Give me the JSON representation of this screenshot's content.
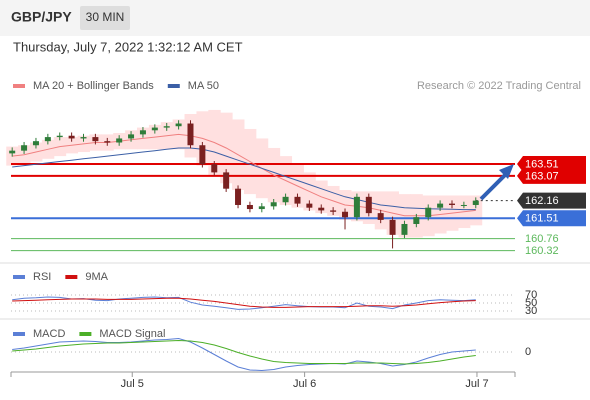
{
  "header": {
    "symbol": "GBP/JPY",
    "interval": "30 MIN",
    "timestamp": "Thursday, July 7, 2022 1:32:12 AM CET"
  },
  "chart_data": [
    {
      "type": "candlestick",
      "open": [
        163.9,
        164.0,
        164.2,
        164.35,
        164.5,
        164.55,
        164.45,
        164.5,
        164.35,
        164.3,
        164.45,
        164.6,
        164.75,
        164.85,
        164.9,
        165.0,
        164.2,
        163.5,
        163.2,
        162.6,
        162.0,
        161.85,
        161.95,
        162.1,
        162.3,
        162.05,
        161.9,
        161.8,
        161.75,
        161.55,
        162.3,
        161.7,
        161.45,
        160.9,
        161.3,
        161.55,
        161.9,
        162.05,
        162.0,
        162.0
      ],
      "high": [
        164.12,
        164.32,
        164.47,
        164.62,
        164.67,
        164.67,
        164.62,
        164.62,
        164.47,
        164.57,
        164.72,
        164.87,
        164.97,
        165.02,
        165.12,
        165.12,
        164.32,
        163.62,
        163.32,
        162.72,
        162.12,
        162.07,
        162.22,
        162.42,
        162.42,
        162.17,
        162.02,
        161.92,
        161.87,
        162.42,
        162.42,
        161.82,
        161.57,
        161.42,
        161.67,
        162.02,
        162.17,
        162.17,
        162.12,
        162.28
      ],
      "low": [
        163.78,
        163.88,
        164.08,
        164.23,
        164.38,
        164.33,
        164.33,
        164.23,
        164.18,
        164.18,
        164.33,
        164.48,
        164.63,
        164.73,
        164.78,
        164.08,
        163.38,
        163.08,
        162.48,
        161.88,
        161.73,
        161.73,
        161.83,
        161.98,
        161.93,
        161.78,
        161.68,
        161.63,
        161.1,
        161.43,
        161.58,
        161.33,
        160.4,
        160.78,
        161.18,
        161.43,
        161.78,
        161.88,
        161.88,
        161.88
      ],
      "close": [
        164.0,
        164.2,
        164.35,
        164.5,
        164.55,
        164.45,
        164.5,
        164.35,
        164.3,
        164.45,
        164.6,
        164.75,
        164.85,
        164.9,
        165.0,
        164.2,
        163.5,
        163.2,
        162.6,
        162.0,
        161.85,
        161.95,
        162.1,
        162.3,
        162.05,
        161.9,
        161.8,
        161.75,
        161.55,
        162.3,
        161.7,
        161.45,
        160.9,
        161.3,
        161.55,
        161.9,
        162.05,
        162.0,
        162.0,
        162.16
      ],
      "up_color": "#2f7d3a",
      "down_color": "#7a2020",
      "xlim": [
        -0.1,
        42.3
      ],
      "xticks": [
        {
          "value": 10.1,
          "label": "Jul 5"
        },
        {
          "value": 24.6,
          "label": "Jul 6"
        },
        {
          "value": 39.1,
          "label": "Jul 7"
        }
      ],
      "ylim": [
        159.9,
        166.05
      ],
      "overlays": [
        {
          "name": "MA 20 + Bollinger Bands",
          "color": "#f08080",
          "band_color": "#ffe0e0",
          "values": [
            163.8,
            163.85,
            163.95,
            164.05,
            164.15,
            164.2,
            164.25,
            164.3,
            164.3,
            164.35,
            164.4,
            164.45,
            164.5,
            164.55,
            164.6,
            164.55,
            164.45,
            164.3,
            164.1,
            163.85,
            163.6,
            163.35,
            163.1,
            162.9,
            162.7,
            162.5,
            162.3,
            162.15,
            162.0,
            161.95,
            161.9,
            161.8,
            161.7,
            161.6,
            161.6,
            161.6,
            161.65,
            161.7,
            161.75,
            161.8
          ],
          "upper": [
            164.15,
            164.2,
            164.3,
            164.4,
            164.5,
            164.5,
            164.55,
            164.6,
            164.6,
            164.65,
            164.75,
            164.85,
            164.95,
            165.05,
            165.15,
            165.35,
            165.45,
            165.5,
            165.4,
            165.15,
            164.8,
            164.45,
            164.1,
            163.8,
            163.5,
            163.2,
            162.9,
            162.7,
            162.55,
            162.5,
            162.5,
            162.5,
            162.5,
            162.4,
            162.4,
            162.35,
            162.35,
            162.35,
            162.35,
            162.35
          ],
          "lower": [
            163.45,
            163.5,
            163.6,
            163.7,
            163.8,
            163.9,
            163.95,
            164.0,
            164.0,
            164.05,
            164.05,
            164.05,
            164.05,
            164.05,
            164.05,
            163.75,
            163.45,
            163.1,
            162.8,
            162.55,
            162.4,
            162.25,
            162.1,
            162.0,
            161.9,
            161.8,
            161.7,
            161.6,
            161.45,
            161.4,
            161.3,
            161.1,
            160.9,
            160.8,
            160.8,
            160.85,
            160.95,
            161.05,
            161.15,
            161.25
          ]
        },
        {
          "name": "MA 50",
          "color": "#3b5fa6",
          "values": [
            163.4,
            163.45,
            163.5,
            163.55,
            163.6,
            163.65,
            163.7,
            163.75,
            163.8,
            163.85,
            163.9,
            163.95,
            164.0,
            164.05,
            164.1,
            164.1,
            164.05,
            163.95,
            163.8,
            163.65,
            163.5,
            163.35,
            163.2,
            163.05,
            162.9,
            162.75,
            162.6,
            162.45,
            162.3,
            162.2,
            162.1,
            162.0,
            161.95,
            161.9,
            161.88,
            161.86,
            161.85,
            161.84,
            161.83,
            161.83
          ]
        }
      ],
      "levels": [
        {
          "value": 163.51,
          "color": "#e00000",
          "line": "solid",
          "box": true
        },
        {
          "value": 163.07,
          "color": "#e00000",
          "line": "solid",
          "box": true
        },
        {
          "value": 162.16,
          "color": "#333333",
          "line": "dotted",
          "box": true
        },
        {
          "value": 161.51,
          "color": "#3a6fd8",
          "line": "solid",
          "box": true
        },
        {
          "value": 160.76,
          "color": "#5cb85c",
          "line": "solid",
          "box": false
        },
        {
          "value": 160.32,
          "color": "#5cb85c",
          "line": "solid",
          "box": false
        }
      ],
      "copyright": "Research © 2022 Trading Central"
    },
    {
      "type": "line",
      "series": [
        {
          "name": "RSI",
          "color": "#5b7fd6",
          "values": [
            58,
            62,
            63,
            65,
            64,
            60,
            61,
            57,
            56,
            60,
            62,
            64,
            65,
            63,
            64,
            52,
            45,
            42,
            38,
            34,
            35,
            38,
            42,
            46,
            43,
            41,
            40,
            40,
            38,
            50,
            42,
            40,
            36,
            45,
            50,
            56,
            58,
            57,
            56,
            58
          ]
        },
        {
          "name": "9MA",
          "color": "#d01010",
          "values": [
            55,
            56,
            57,
            58,
            59,
            60,
            60,
            60,
            59,
            59,
            59,
            60,
            61,
            62,
            62,
            60,
            57,
            54,
            50,
            46,
            42,
            40,
            39,
            39,
            40,
            41,
            41,
            41,
            41,
            42,
            43,
            43,
            42,
            43,
            45,
            48,
            51,
            53,
            55,
            56
          ]
        }
      ],
      "ylim": [
        15,
        90
      ],
      "yticks": [
        70,
        50,
        30
      ],
      "grid": true
    },
    {
      "type": "line",
      "series": [
        {
          "name": "MACD",
          "color": "#5b7fd6",
          "values": [
            0.05,
            0.08,
            0.12,
            0.16,
            0.2,
            0.21,
            0.22,
            0.21,
            0.19,
            0.19,
            0.2,
            0.22,
            0.24,
            0.25,
            0.27,
            0.2,
            0.08,
            -0.05,
            -0.18,
            -0.3,
            -0.36,
            -0.37,
            -0.35,
            -0.3,
            -0.27,
            -0.25,
            -0.24,
            -0.23,
            -0.24,
            -0.18,
            -0.2,
            -0.23,
            -0.28,
            -0.25,
            -0.2,
            -0.12,
            -0.05,
            0.0,
            0.02,
            0.04
          ]
        },
        {
          "name": "MACD Signal",
          "color": "#4caf28",
          "values": [
            0.02,
            0.04,
            0.06,
            0.09,
            0.12,
            0.14,
            0.16,
            0.17,
            0.18,
            0.18,
            0.19,
            0.2,
            0.21,
            0.22,
            0.23,
            0.22,
            0.19,
            0.14,
            0.07,
            -0.01,
            -0.08,
            -0.14,
            -0.19,
            -0.21,
            -0.22,
            -0.23,
            -0.23,
            -0.23,
            -0.23,
            -0.22,
            -0.22,
            -0.22,
            -0.23,
            -0.24,
            -0.23,
            -0.21,
            -0.18,
            -0.14,
            -0.1,
            -0.07
          ]
        }
      ],
      "ylim": [
        -0.4,
        0.5
      ],
      "yticks": [
        0
      ],
      "grid": true
    }
  ]
}
